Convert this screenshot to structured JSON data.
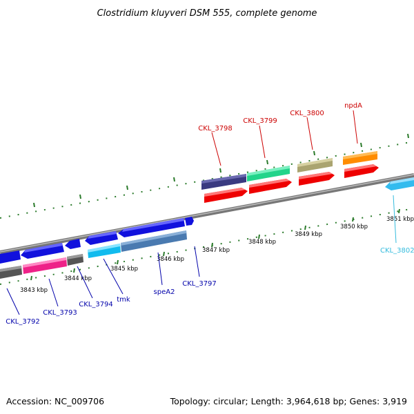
{
  "title": "Clostridium kluyveri DSM 555, complete genome",
  "accession": "Accession: NC_009706",
  "summary": "Topology: circular; Length: 3,964,618 bp; Genes: 3,919",
  "colors": {
    "label_top": "#cc0000",
    "label_bottom": "#0000aa",
    "label_cyan": "#33bbdd",
    "backbone": "#888888",
    "tick": "#2a7a2a"
  },
  "kbp_labels": [
    "3843 kbp",
    "3844 kbp",
    "3845 kbp",
    "3846 kbp",
    "3847 kbp",
    "3848 kbp",
    "3849 kbp",
    "3850 kbp",
    "3851 kbp"
  ],
  "gene_labels": {
    "CKL_3792": "CKL_3792",
    "CKL_3793": "CKL_3793",
    "CKL_3794": "CKL_3794",
    "tmk": "tmk",
    "speA2": "speA2",
    "CKL_3797": "CKL_3797",
    "CKL_3798": "CKL_3798",
    "CKL_3799": "CKL_3799",
    "CKL_3800": "CKL_3800",
    "npdA": "npdA",
    "CKL_3802": "CKL_3802"
  }
}
